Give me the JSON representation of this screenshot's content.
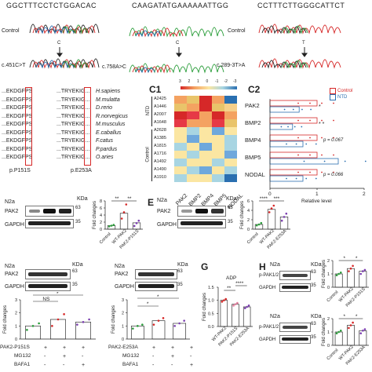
{
  "seq": {
    "left": "GGCTTTCCTCTGGACAC",
    "mid": "CAAGATATGAAAAAATTGG",
    "right": "CCTTTCTTGGGCATTCT"
  },
  "mutations": {
    "left": {
      "control": "Control",
      "label": "c.451C>T",
      "arrow": "C"
    },
    "mid": {
      "label": "c.758A>C",
      "arrow": "C"
    },
    "right": {
      "control": "Control",
      "label": "c.289-3T>A",
      "arrow": "T"
    }
  },
  "alignment": {
    "rows": [
      {
        "a": "...EKDGFPS",
        "b": "...TRYEKIG...",
        "species": "H.sapiens"
      },
      {
        "a": "...EKDGFPS",
        "b": "...TRYEKIG...",
        "species": "M.mulatta"
      },
      {
        "a": "...EKDGFPS",
        "b": "...TRYEKIG...",
        "species": "D.rerio"
      },
      {
        "a": "...EKDGFPS",
        "b": "...TRYEKIG...",
        "species": "R.norvegicus"
      },
      {
        "a": "...EKDGFPS",
        "b": "...TRYEKIG...",
        "species": "M.musculus"
      },
      {
        "a": "...EKDGFPS",
        "b": "...TRYEKIG...",
        "species": "E.caballus"
      },
      {
        "a": "...EKDGFPS",
        "b": "...TRYEKIG...",
        "species": "F.catus"
      },
      {
        "a": "...EKDGFPS",
        "b": "...TRYEKIG...",
        "species": "P.pardus"
      },
      {
        "a": "...EKDGFPS",
        "b": "...TRYEKIG...",
        "species": "O.aries"
      }
    ],
    "foot_a": "p.P151S",
    "foot_b": "p.E253A"
  },
  "c1": {
    "panel": "C1",
    "scale": [
      "3",
      "2",
      "1",
      "0",
      "-1",
      "-2",
      "-3"
    ],
    "rows": [
      "A2425",
      "A1446",
      "A2007",
      "A1648",
      "A2628",
      "A1385",
      "A1815",
      "A1716",
      "A1492",
      "A1490",
      "A1910"
    ],
    "cols": [
      "PAK2",
      "BMP2",
      "BMP4",
      "BMP5",
      "NODAL"
    ],
    "group_ntd": "NTD",
    "group_control": "Control",
    "colors": [
      "#f4a261",
      "#e9c46a",
      "#d62828",
      "#f4a261",
      "#2a6fb0",
      "#e9c46a",
      "#f4a261",
      "#d62828",
      "#e9c46a",
      "#f7d08a",
      "#d62828",
      "#e63946",
      "#f4a261",
      "#d62828",
      "#f4a261",
      "#e63946",
      "#f4a261",
      "#f4a261",
      "#e63946",
      "#e9c46a",
      "#fbe6a2",
      "#a8d5e2",
      "#fbe6a2",
      "#6fa8dc",
      "#fbe6a2",
      "#fbe6a2",
      "#6fa8dc",
      "#fbe6a2",
      "#fbe6a2",
      "#a8d5e2",
      "#a8d5e2",
      "#fbe6a2",
      "#6fa8dc",
      "#fbe6a2",
      "#a8d5e2",
      "#fbe6a2",
      "#a8d5e2",
      "#fbe6a2",
      "#fbe6a2",
      "#6fa8dc",
      "#a8d5e2",
      "#fbe6a2",
      "#fbe6a2",
      "#a8d5e2",
      "#fbe6a2",
      "#fbe6a2",
      "#a8d5e2",
      "#6fa8dc",
      "#fbe6a2",
      "#a8d5e2",
      "#a8d5e2",
      "#fbe6a2",
      "#fbe6a2",
      "#a8d5e2",
      "#2a6fb0"
    ]
  },
  "c2": {
    "panel": "C2",
    "legend": [
      "Control",
      "NTD"
    ],
    "genes": [
      "PAK2",
      "BMP2",
      "BMP4",
      "BMP5",
      "NODAL"
    ],
    "pvals": [
      "",
      "",
      "p = 0.067",
      "",
      "p = 0.066"
    ],
    "stars": [
      "*",
      "* *",
      "",
      "",
      ""
    ],
    "xlabel": "Relative level",
    "xticks": [
      "0",
      "1",
      "2"
    ]
  },
  "d": {
    "cell": "N2a",
    "kda": "KDa",
    "m1": "63",
    "m2": "35",
    "row1": "PAK2",
    "row2": "GAPDH",
    "lanes": [
      "Control",
      "WT-PAK2",
      "PAK2-P151S"
    ],
    "ylabel": "Fold changes",
    "stars": [
      "**",
      "**"
    ],
    "yticks": [
      "0",
      "2",
      "4",
      "6",
      "8"
    ]
  },
  "e": {
    "panel": "E",
    "cell": "N2a",
    "kda": "KDa",
    "m1": "63",
    "m2": "35",
    "row1": "PAK2",
    "row2": "GAPDH",
    "lanes": [
      "Control",
      "WT-PAK2",
      "PAK2-E253A"
    ],
    "ylabel": "Fold changes",
    "stars": [
      "****",
      "***"
    ],
    "yticks": [
      "0",
      "2",
      "4",
      "6"
    ]
  },
  "f1": {
    "cell": "N2a",
    "kda": "KDa",
    "m1": "63",
    "m2": "35",
    "row1": "PAK2",
    "row2": "GAPDH",
    "ylabel": "Fold changes",
    "ns": "NS",
    "star": "*",
    "yticks": [
      "0",
      "1",
      "2",
      "3"
    ],
    "conds": [
      [
        "PAK2-P151S",
        "+",
        "+",
        "+"
      ],
      [
        "MG132",
        "-",
        "+",
        "-"
      ],
      [
        "BAFA1",
        "-",
        "-",
        "+"
      ]
    ]
  },
  "f2": {
    "cell": "N2a",
    "kda": "KDa",
    "m1": "63",
    "m2": "35",
    "row1": "PAK2",
    "row2": "GAPDH",
    "ylabel": "Fold changes",
    "stars": [
      "*",
      "*"
    ],
    "yticks": [
      "0",
      "1",
      "2",
      "3"
    ],
    "conds": [
      [
        "PAK2-E253A",
        "+",
        "+",
        "+"
      ],
      [
        "MG132",
        "-",
        "+",
        "-"
      ],
      [
        "BAFA1",
        "-",
        "-",
        "+"
      ]
    ]
  },
  "g": {
    "panel": "G",
    "title": "ADP",
    "ylabel": "Fold changes",
    "stars": [
      "**",
      "****"
    ],
    "lanes": [
      "WT-PAK2",
      "PAK2-P151S",
      "PAK2-E253A"
    ],
    "yticks": [
      "0.0",
      "0.5",
      "1.0",
      "1.5"
    ]
  },
  "h": {
    "panel": "H",
    "top": {
      "cell": "N2a",
      "kda": "KDa",
      "m1": "63",
      "m2": "35",
      "row1": "p-PAK1/2",
      "row2": "GAPDH",
      "lanes": [
        "Control",
        "WT-PAK2",
        "PAK2-P151S"
      ],
      "stars": [
        "*",
        "*"
      ],
      "yticks": [
        "0",
        "1",
        "2"
      ]
    },
    "bottom": {
      "cell": "N2a",
      "kda": "KDa",
      "m1": "63",
      "m2": "35",
      "row1": "p-PAK1/2",
      "row2": "GAPDH",
      "lanes": [
        "Control",
        "WT-PAK2",
        "PAK2-E253A"
      ],
      "stars": [
        "*",
        "*"
      ],
      "yticks": [
        "0",
        "1",
        "2"
      ]
    },
    "ylabel": "Fold changes"
  }
}
